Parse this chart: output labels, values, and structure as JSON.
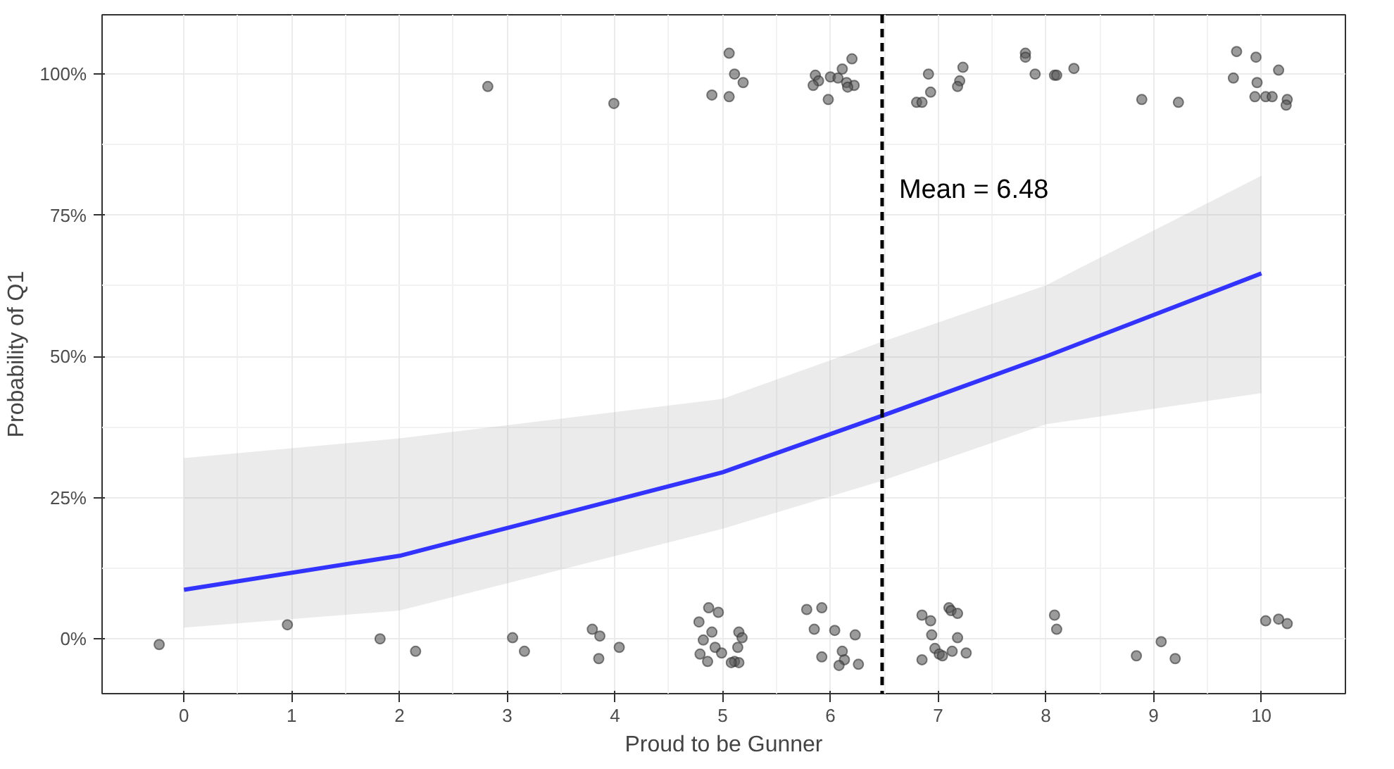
{
  "chart_data": {
    "type": "scatter",
    "xlabel": "Proud to be Gunner",
    "ylabel": "Probability of Q1",
    "xlim": [
      -0.76,
      10.78
    ],
    "ylim": [
      -9.7,
      110.5
    ],
    "xticks": [
      0,
      1,
      2,
      3,
      4,
      5,
      6,
      7,
      8,
      9,
      10
    ],
    "yticks": [
      {
        "value": 0,
        "label": "0%"
      },
      {
        "value": 25,
        "label": "25%"
      },
      {
        "value": 50,
        "label": "50%"
      },
      {
        "value": 75,
        "label": "75%"
      },
      {
        "value": 100,
        "label": "100%"
      }
    ],
    "grid": true,
    "marker": "circle",
    "series": [
      {
        "color": "#595959",
        "x": [
          2.82,
          3.99,
          4.9,
          5.06,
          5.11,
          5.19,
          5.06,
          5.86,
          5.89,
          5.98,
          6.0,
          6.07,
          6.11,
          6.2,
          6.15,
          6.22,
          5.84,
          6.16,
          6.8,
          6.85,
          6.91,
          6.93,
          7.23,
          7.2,
          7.18,
          7.81,
          7.81,
          7.9,
          8.08,
          8.1,
          8.26,
          8.89,
          9.23,
          9.77,
          9.74,
          9.95,
          9.96,
          10.16,
          9.94,
          10.04,
          10.1,
          10.24,
          10.23,
          -0.23,
          0.96,
          1.82,
          2.15,
          3.05,
          3.16,
          3.79,
          3.86,
          3.85,
          4.04,
          4.78,
          4.87,
          4.9,
          4.82,
          4.79,
          4.86,
          4.93,
          4.99,
          4.96,
          5.15,
          5.18,
          5.14,
          5.11,
          5.15,
          5.08,
          5.78,
          5.92,
          5.85,
          6.04,
          6.23,
          5.92,
          6.11,
          6.13,
          6.08,
          6.26,
          6.85,
          6.93,
          7.1,
          7.12,
          7.18,
          6.94,
          6.97,
          7.01,
          7.18,
          7.13,
          7.04,
          7.26,
          6.85,
          8.08,
          8.1,
          8.84,
          9.07,
          9.2,
          10.04,
          10.16,
          10.24
        ],
        "values": [
          97.8,
          94.8,
          96.3,
          103.7,
          100,
          98.5,
          96,
          99.8,
          98.8,
          95.5,
          99.5,
          99.3,
          100.9,
          102.7,
          98.5,
          98,
          98,
          97.7,
          95,
          95,
          100,
          96.8,
          101.2,
          98.8,
          97.8,
          103.7,
          103,
          100,
          99.8,
          99.8,
          101,
          95.5,
          95,
          104,
          99.3,
          103,
          98.5,
          100.7,
          96,
          96,
          96,
          95.5,
          94.5,
          -1,
          2.5,
          0,
          -2.2,
          0.2,
          -2.2,
          1.7,
          0.5,
          -3.5,
          -1.5,
          3,
          5.5,
          1.2,
          -0.2,
          -2.7,
          -4,
          -1.5,
          -2.5,
          4.7,
          1.2,
          0.2,
          -1.5,
          -4,
          -4.2,
          -4.2,
          5.2,
          5.5,
          1.7,
          1.5,
          0.7,
          -3.2,
          -2.2,
          -3.7,
          -4.7,
          -4.5,
          4.2,
          3.2,
          5.5,
          5,
          4.5,
          0.7,
          -1.7,
          -2.7,
          0.2,
          -2.2,
          -3,
          -2.5,
          -3.7,
          4.2,
          1.7,
          -3,
          -0.5,
          -3.5,
          3.2,
          3.5,
          2.7
        ]
      },
      {
        "type": "line",
        "color": "#3333ff",
        "marker": "none",
        "x": [
          0,
          2,
          5,
          6.48,
          8,
          10
        ],
        "values": [
          8.7,
          14.7,
          29.5,
          39.5,
          50,
          64.7
        ],
        "lower": [
          2,
          5,
          19.5,
          28,
          38,
          43.5
        ],
        "upper": [
          32,
          35.5,
          42.5,
          52.6,
          62.6,
          82
        ]
      }
    ],
    "ref_lines": [
      {
        "axis": "x",
        "value": 6.48,
        "label": "Mean = 6.48",
        "color": "#000000",
        "line_style": "dashed"
      }
    ]
  }
}
